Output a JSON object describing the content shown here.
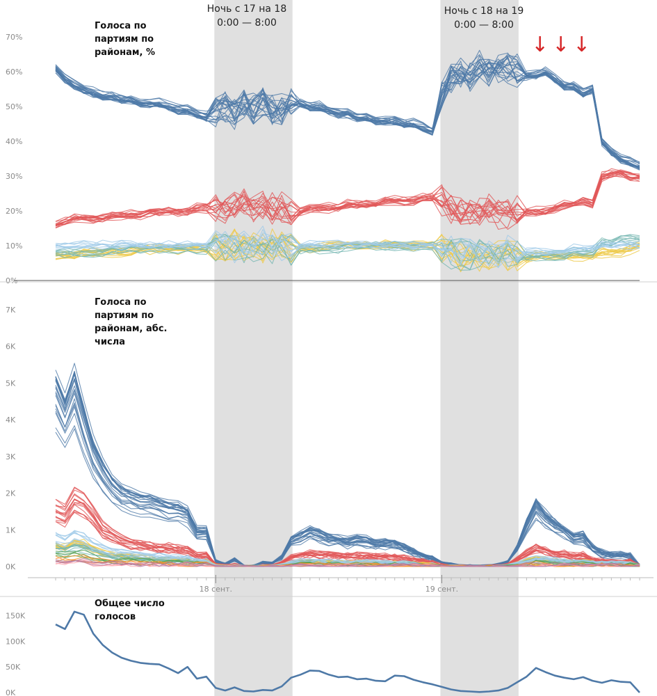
{
  "annotations": {
    "night1": {
      "line1": "Ночь с 17 на 18",
      "line2": "0:00 — 8:00"
    },
    "night2": {
      "line1": "Ночь с 18 на 19",
      "line2": "0:00 — 8:00"
    },
    "arrows": [
      "↓",
      "↓",
      "↓"
    ]
  },
  "colors": {
    "unitedRussia": "#4e79a7",
    "kprf": "#e15759",
    "yellowParty": "#edc948",
    "tealParty": "#76b7b2",
    "lightBlueParty": "#a0cbe8",
    "greenParty": "#59a14f",
    "orangeParty": "#f28e2b",
    "pinkParty": "#ff9da7",
    "purpleParty": "#b07aa1",
    "nightBand": "#e0e0e0"
  },
  "chart_data": [
    {
      "id": "pct",
      "type": "line",
      "title": "Голоса по партиям по районам, %",
      "yticks": [
        "0%",
        "10%",
        "20%",
        "30%",
        "40%",
        "50%",
        "60%",
        "70%"
      ],
      "ylim": [
        0,
        70
      ],
      "x_hours": [
        0,
        1,
        2,
        3,
        4,
        5,
        6,
        7,
        8,
        9,
        10,
        11,
        12,
        13,
        14,
        15,
        16,
        17,
        18,
        19,
        20,
        21,
        22,
        23,
        24,
        25,
        26,
        27,
        28,
        29,
        30,
        31,
        32,
        33,
        34,
        35,
        36,
        37,
        38,
        39,
        40,
        41,
        42,
        43,
        44,
        45,
        46,
        47,
        48,
        49,
        50,
        51,
        52,
        53,
        54,
        55,
        56,
        57,
        58,
        59,
        60,
        61,
        62
      ],
      "x_date_ticks": [
        {
          "hour": 17,
          "label": "18 сент."
        },
        {
          "hour": 41,
          "label": "19 сент."
        }
      ],
      "night_bands": [
        [
          17,
          25
        ],
        [
          41,
          49
        ]
      ],
      "series": [
        {
          "color_key": "unitedRussia",
          "lines": 22,
          "values": [
            61,
            58,
            56,
            55,
            54,
            53,
            53,
            52,
            52,
            51,
            51,
            51,
            50,
            49,
            49,
            48,
            47,
            49,
            50,
            48,
            51,
            49,
            52,
            49,
            49,
            52,
            51,
            50,
            50,
            49,
            48,
            48,
            47,
            47,
            46,
            46,
            46,
            45,
            45,
            44,
            43,
            54,
            58,
            60,
            59,
            62,
            60,
            61,
            61,
            60,
            59,
            59,
            60,
            58,
            56,
            56,
            54,
            55,
            40,
            37,
            35,
            34,
            33
          ]
        },
        {
          "color_key": "kprf",
          "lines": 16,
          "values": [
            16,
            17,
            18,
            18,
            18,
            18,
            19,
            19,
            19,
            19,
            20,
            20,
            20,
            20,
            20,
            21,
            21,
            21,
            21,
            22,
            23,
            21,
            22,
            21,
            21,
            20,
            20,
            21,
            21,
            21,
            21,
            22,
            22,
            22,
            22,
            23,
            23,
            23,
            23,
            24,
            24,
            23,
            21,
            20,
            20,
            19,
            21,
            19,
            19,
            20,
            20,
            20,
            20,
            21,
            22,
            22,
            23,
            22,
            30,
            31,
            31,
            30,
            30
          ]
        },
        {
          "color_key": "yellowParty",
          "lines": 12,
          "values": [
            7,
            7,
            7,
            8,
            8,
            8,
            8,
            8,
            8,
            9,
            9,
            9,
            9,
            9,
            9,
            9,
            9,
            10,
            9,
            10,
            9,
            10,
            9,
            10,
            10,
            9,
            9,
            9,
            9,
            10,
            10,
            10,
            10,
            10,
            10,
            10,
            10,
            10,
            10,
            10,
            10,
            9,
            8,
            7,
            8,
            7,
            7,
            7,
            7,
            7,
            6,
            7,
            7,
            7,
            7,
            7,
            7,
            7,
            8,
            8,
            8,
            9,
            10
          ]
        },
        {
          "color_key": "tealParty",
          "lines": 8,
          "values": [
            8,
            8,
            8,
            8,
            8,
            8,
            9,
            9,
            9,
            9,
            9,
            9,
            9,
            9,
            9,
            9,
            9,
            9,
            10,
            9,
            10,
            9,
            10,
            9,
            10,
            9,
            9,
            9,
            9,
            9,
            9,
            10,
            10,
            10,
            10,
            10,
            10,
            10,
            10,
            10,
            10,
            9,
            8,
            8,
            7,
            8,
            8,
            7,
            7,
            7,
            7,
            7,
            7,
            7,
            7,
            8,
            8,
            8,
            11,
            11,
            12,
            12,
            12
          ]
        },
        {
          "color_key": "lightBlueParty",
          "lines": 8,
          "values": [
            10,
            10,
            10,
            10,
            10,
            10,
            10,
            10,
            10,
            10,
            10,
            10,
            10,
            10,
            10,
            10,
            10,
            10,
            11,
            9,
            11,
            9,
            11,
            10,
            10,
            10,
            10,
            10,
            10,
            10,
            10,
            10,
            10,
            10,
            10,
            10,
            10,
            10,
            10,
            10,
            10,
            9,
            8,
            8,
            8,
            8,
            8,
            8,
            8,
            8,
            8,
            8,
            8,
            8,
            8,
            9,
            9,
            9,
            10,
            10,
            10,
            10,
            10
          ]
        }
      ]
    },
    {
      "id": "abs",
      "type": "line",
      "title": "Голоса по партиям по районам, абс. числа",
      "yticks": [
        "0K",
        "1K",
        "2K",
        "3K",
        "4K",
        "5K",
        "6K",
        "7K"
      ],
      "ylim": [
        0,
        7000
      ],
      "x_date_labels": [
        "18 сент.",
        "19 сент."
      ],
      "series": [
        {
          "color_key": "unitedRussia",
          "lines": 22,
          "values": [
            4600,
            4000,
            4700,
            3800,
            3000,
            2500,
            2100,
            1900,
            1800,
            1700,
            1700,
            1600,
            1500,
            1500,
            1400,
            900,
            900,
            150,
            60,
            200,
            10,
            10,
            100,
            100,
            250,
            700,
            800,
            900,
            850,
            750,
            700,
            650,
            720,
            680,
            600,
            620,
            610,
            500,
            400,
            300,
            200,
            100,
            60,
            30,
            20,
            10,
            20,
            50,
            120,
            500,
            1100,
            1600,
            1300,
            1100,
            950,
            750,
            800,
            500,
            350,
            300,
            310,
            280,
            0
          ]
        },
        {
          "color_key": "kprf",
          "lines": 16,
          "values": [
            1500,
            1400,
            1800,
            1700,
            1400,
            1000,
            850,
            700,
            650,
            600,
            550,
            500,
            500,
            470,
            450,
            300,
            300,
            60,
            25,
            60,
            5,
            5,
            30,
            30,
            100,
            250,
            300,
            350,
            330,
            310,
            300,
            290,
            300,
            280,
            270,
            270,
            260,
            230,
            190,
            140,
            100,
            50,
            30,
            15,
            10,
            5,
            10,
            25,
            60,
            200,
            350,
            500,
            420,
            350,
            330,
            280,
            300,
            200,
            150,
            130,
            130,
            130,
            0
          ]
        },
        {
          "color_key": "yellowParty",
          "lines": 12,
          "values": [
            600,
            550,
            700,
            650,
            500,
            400,
            340,
            300,
            280,
            260,
            240,
            220,
            210,
            200,
            190,
            130,
            130,
            30,
            10,
            30,
            3,
            3,
            15,
            15,
            50,
            110,
            130,
            140,
            130,
            120,
            120,
            110,
            115,
            110,
            105,
            105,
            100,
            90,
            75,
            55,
            40,
            20,
            10,
            5,
            3,
            2,
            4,
            10,
            30,
            100,
            170,
            240,
            200,
            170,
            160,
            130,
            140,
            100,
            90,
            80,
            80,
            80,
            0
          ]
        },
        {
          "color_key": "tealParty",
          "lines": 8,
          "values": [
            500,
            450,
            560,
            520,
            420,
            340,
            290,
            250,
            230,
            210,
            200,
            190,
            180,
            170,
            160,
            110,
            110,
            25,
            8,
            25,
            2,
            2,
            12,
            12,
            40,
            90,
            100,
            110,
            105,
            100,
            95,
            90,
            95,
            90,
            85,
            85,
            80,
            70,
            60,
            45,
            30,
            15,
            8,
            4,
            2,
            1,
            3,
            8,
            25,
            80,
            130,
            190,
            160,
            130,
            120,
            100,
            110,
            80,
            80,
            70,
            70,
            70,
            0
          ]
        },
        {
          "color_key": "lightBlueParty",
          "lines": 8,
          "values": [
            800,
            700,
            850,
            780,
            620,
            500,
            420,
            370,
            340,
            320,
            300,
            280,
            270,
            250,
            240,
            160,
            160,
            35,
            10,
            35,
            3,
            3,
            15,
            15,
            50,
            120,
            140,
            150,
            140,
            130,
            125,
            120,
            125,
            120,
            110,
            110,
            105,
            95,
            80,
            60,
            40,
            20,
            10,
            5,
            3,
            2,
            4,
            10,
            30,
            100,
            160,
            230,
            200,
            170,
            160,
            130,
            140,
            100,
            100,
            90,
            90,
            90,
            0
          ]
        },
        {
          "color_key": "greenParty",
          "lines": 4,
          "values": [
            300,
            280,
            340,
            320,
            260,
            210,
            180,
            160,
            150,
            140,
            130,
            125,
            120,
            115,
            110,
            75,
            75,
            16,
            5,
            16,
            1,
            1,
            7,
            7,
            25,
            55,
            65,
            70,
            65,
            60,
            58,
            55,
            57,
            55,
            52,
            52,
            50,
            45,
            37,
            28,
            20,
            10,
            5,
            2,
            1,
            1,
            2,
            5,
            15,
            45,
            75,
            110,
            95,
            80,
            75,
            62,
            66,
            48,
            45,
            40,
            40,
            40,
            0
          ]
        },
        {
          "color_key": "orangeParty",
          "lines": 4,
          "values": [
            200,
            190,
            230,
            215,
            175,
            140,
            120,
            105,
            100,
            95,
            90,
            85,
            80,
            78,
            74,
            50,
            50,
            11,
            3,
            11,
            1,
            1,
            5,
            5,
            16,
            36,
            42,
            46,
            43,
            40,
            38,
            36,
            38,
            36,
            34,
            34,
            33,
            30,
            25,
            18,
            13,
            6,
            3,
            2,
            1,
            1,
            1,
            3,
            10,
            30,
            50,
            72,
            62,
            52,
            50,
            41,
            44,
            32,
            30,
            26,
            26,
            26,
            0
          ]
        },
        {
          "color_key": "pinkParty",
          "lines": 3,
          "values": [
            100,
            95,
            115,
            108,
            88,
            70,
            60,
            53,
            50,
            47,
            45,
            43,
            40,
            39,
            37,
            25,
            25,
            6,
            2,
            6,
            1,
            1,
            3,
            3,
            8,
            18,
            21,
            23,
            22,
            20,
            19,
            18,
            19,
            18,
            17,
            17,
            17,
            15,
            12,
            9,
            6,
            3,
            2,
            1,
            1,
            1,
            1,
            2,
            5,
            15,
            25,
            36,
            31,
            26,
            25,
            20,
            22,
            16,
            15,
            13,
            13,
            13,
            0
          ]
        },
        {
          "color_key": "purpleParty",
          "lines": 3,
          "values": [
            150,
            140,
            170,
            160,
            130,
            105,
            90,
            80,
            75,
            70,
            67,
            63,
            60,
            58,
            55,
            37,
            37,
            8,
            3,
            8,
            1,
            1,
            4,
            4,
            12,
            27,
            32,
            34,
            32,
            30,
            29,
            27,
            28,
            27,
            25,
            25,
            25,
            22,
            18,
            14,
            10,
            5,
            2,
            1,
            1,
            1,
            1,
            3,
            7,
            22,
            37,
            54,
            46,
            39,
            37,
            31,
            33,
            24,
            22,
            20,
            20,
            20,
            0
          ]
        }
      ]
    },
    {
      "id": "total",
      "type": "line",
      "title": "Общее число голосов",
      "yticks": [
        "0K",
        "50K",
        "100K",
        "150K"
      ],
      "ylim": [
        0,
        170000
      ],
      "series": [
        {
          "color_key": "unitedRussia",
          "lines": 1,
          "values": [
            133000,
            124000,
            158000,
            152000,
            115000,
            93000,
            78000,
            68000,
            62000,
            58000,
            56000,
            55000,
            47000,
            38000,
            50000,
            27000,
            31000,
            9000,
            4000,
            10000,
            3000,
            2000,
            5000,
            4000,
            12000,
            29000,
            35000,
            43000,
            42000,
            35000,
            30000,
            31000,
            26000,
            27000,
            23000,
            22000,
            33000,
            32000,
            25000,
            20000,
            16000,
            11000,
            6000,
            3000,
            2000,
            1000,
            2000,
            4000,
            9000,
            20000,
            31000,
            48000,
            40000,
            33000,
            29000,
            26000,
            30000,
            23000,
            19000,
            24000,
            21000,
            20000,
            0
          ]
        }
      ]
    }
  ]
}
